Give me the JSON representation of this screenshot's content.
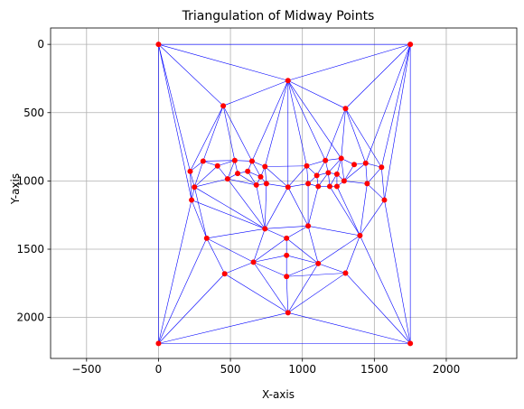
{
  "chart_data": {
    "type": "scatter",
    "title": "Triangulation of Midway Points",
    "xlabel": "X-axis",
    "ylabel": "Y-axis",
    "xlim": [
      -750,
      2490
    ],
    "ylim": [
      2300,
      -120
    ],
    "y_inverted": true,
    "grid": true,
    "x_ticks": [
      -500,
      0,
      500,
      1000,
      1500,
      2000
    ],
    "y_ticks": [
      0,
      500,
      1000,
      1500,
      2000
    ],
    "x_tick_labels": [
      "−500",
      "0",
      "500",
      "1000",
      "1500",
      "2000"
    ],
    "y_tick_labels": [
      "0",
      "500",
      "1000",
      "1500",
      "2000"
    ],
    "point_color": "#ff0000",
    "edge_color": "#0000ff",
    "points": [
      [
        0,
        0
      ],
      [
        1750,
        0
      ],
      [
        0,
        2190
      ],
      [
        1750,
        2190
      ],
      [
        900,
        265
      ],
      [
        450,
        450
      ],
      [
        1300,
        470
      ],
      [
        220,
        930
      ],
      [
        310,
        855
      ],
      [
        250,
        1045
      ],
      [
        230,
        1140
      ],
      [
        410,
        890
      ],
      [
        480,
        985
      ],
      [
        530,
        850
      ],
      [
        550,
        945
      ],
      [
        620,
        930
      ],
      [
        650,
        855
      ],
      [
        680,
        1030
      ],
      [
        710,
        970
      ],
      [
        740,
        895
      ],
      [
        750,
        1020
      ],
      [
        900,
        1045
      ],
      [
        1030,
        890
      ],
      [
        1040,
        1020
      ],
      [
        1100,
        960
      ],
      [
        1110,
        1040
      ],
      [
        1160,
        850
      ],
      [
        1180,
        940
      ],
      [
        1190,
        1040
      ],
      [
        1240,
        950
      ],
      [
        1240,
        1040
      ],
      [
        1270,
        835
      ],
      [
        1290,
        1000
      ],
      [
        1360,
        880
      ],
      [
        1440,
        870
      ],
      [
        1450,
        1020
      ],
      [
        1550,
        900
      ],
      [
        1570,
        1140
      ],
      [
        335,
        1420
      ],
      [
        740,
        1350
      ],
      [
        1040,
        1330
      ],
      [
        1400,
        1400
      ],
      [
        890,
        1420
      ],
      [
        660,
        1595
      ],
      [
        890,
        1545
      ],
      [
        1110,
        1605
      ],
      [
        460,
        1680
      ],
      [
        890,
        1700
      ],
      [
        1300,
        1675
      ],
      [
        900,
        1965
      ]
    ],
    "edges": [
      [
        0,
        1
      ],
      [
        1,
        3
      ],
      [
        3,
        2
      ],
      [
        2,
        0
      ],
      [
        0,
        4
      ],
      [
        1,
        4
      ],
      [
        0,
        5
      ],
      [
        4,
        5
      ],
      [
        4,
        6
      ],
      [
        1,
        6
      ],
      [
        0,
        7
      ],
      [
        0,
        10
      ],
      [
        2,
        10
      ],
      [
        2,
        38
      ],
      [
        2,
        46
      ],
      [
        2,
        49
      ],
      [
        3,
        49
      ],
      [
        3,
        48
      ],
      [
        3,
        41
      ],
      [
        3,
        37
      ],
      [
        1,
        37
      ],
      [
        1,
        36
      ],
      [
        5,
        7
      ],
      [
        5,
        8
      ],
      [
        5,
        13
      ],
      [
        5,
        16
      ],
      [
        4,
        16
      ],
      [
        4,
        19
      ],
      [
        4,
        21
      ],
      [
        4,
        22
      ],
      [
        4,
        26
      ],
      [
        4,
        31
      ],
      [
        6,
        26
      ],
      [
        6,
        31
      ],
      [
        6,
        34
      ],
      [
        6,
        36
      ],
      [
        1,
        34
      ],
      [
        7,
        8
      ],
      [
        7,
        9
      ],
      [
        7,
        10
      ],
      [
        8,
        9
      ],
      [
        8,
        11
      ],
      [
        8,
        13
      ],
      [
        9,
        11
      ],
      [
        9,
        12
      ],
      [
        9,
        10
      ],
      [
        11,
        13
      ],
      [
        11,
        12
      ],
      [
        12,
        13
      ],
      [
        12,
        14
      ],
      [
        13,
        14
      ],
      [
        13,
        16
      ],
      [
        14,
        15
      ],
      [
        15,
        16
      ],
      [
        14,
        17
      ],
      [
        12,
        17
      ],
      [
        15,
        17
      ],
      [
        15,
        18
      ],
      [
        16,
        18
      ],
      [
        16,
        19
      ],
      [
        18,
        19
      ],
      [
        17,
        18
      ],
      [
        18,
        20
      ],
      [
        17,
        20
      ],
      [
        19,
        20
      ],
      [
        19,
        21
      ],
      [
        20,
        21
      ],
      [
        19,
        22
      ],
      [
        21,
        22
      ],
      [
        21,
        23
      ],
      [
        22,
        23
      ],
      [
        22,
        24
      ],
      [
        23,
        24
      ],
      [
        23,
        25
      ],
      [
        24,
        25
      ],
      [
        22,
        26
      ],
      [
        24,
        26
      ],
      [
        24,
        27
      ],
      [
        25,
        27
      ],
      [
        26,
        27
      ],
      [
        27,
        28
      ],
      [
        25,
        28
      ],
      [
        27,
        29
      ],
      [
        28,
        29
      ],
      [
        28,
        30
      ],
      [
        29,
        30
      ],
      [
        26,
        31
      ],
      [
        27,
        31
      ],
      [
        29,
        31
      ],
      [
        29,
        32
      ],
      [
        30,
        32
      ],
      [
        31,
        32
      ],
      [
        31,
        33
      ],
      [
        32,
        33
      ],
      [
        33,
        34
      ],
      [
        32,
        34
      ],
      [
        32,
        35
      ],
      [
        34,
        35
      ],
      [
        34,
        36
      ],
      [
        35,
        36
      ],
      [
        35,
        37
      ],
      [
        36,
        37
      ],
      [
        9,
        38
      ],
      [
        10,
        38
      ],
      [
        12,
        39
      ],
      [
        17,
        39
      ],
      [
        20,
        39
      ],
      [
        21,
        39
      ],
      [
        9,
        39
      ],
      [
        10,
        39
      ],
      [
        38,
        39
      ],
      [
        21,
        40
      ],
      [
        23,
        40
      ],
      [
        25,
        40
      ],
      [
        39,
        40
      ],
      [
        30,
        41
      ],
      [
        35,
        41
      ],
      [
        37,
        41
      ],
      [
        40,
        41
      ],
      [
        28,
        41
      ],
      [
        39,
        42
      ],
      [
        40,
        42
      ],
      [
        38,
        43
      ],
      [
        39,
        43
      ],
      [
        42,
        43
      ],
      [
        42,
        44
      ],
      [
        43,
        44
      ],
      [
        40,
        45
      ],
      [
        41,
        45
      ],
      [
        44,
        45
      ],
      [
        42,
        45
      ],
      [
        38,
        46
      ],
      [
        43,
        46
      ],
      [
        43,
        47
      ],
      [
        44,
        47
      ],
      [
        45,
        47
      ],
      [
        45,
        48
      ],
      [
        41,
        48
      ],
      [
        46,
        49
      ],
      [
        47,
        49
      ],
      [
        48,
        49
      ],
      [
        47,
        48
      ],
      [
        43,
        49
      ],
      [
        45,
        49
      ]
    ]
  }
}
